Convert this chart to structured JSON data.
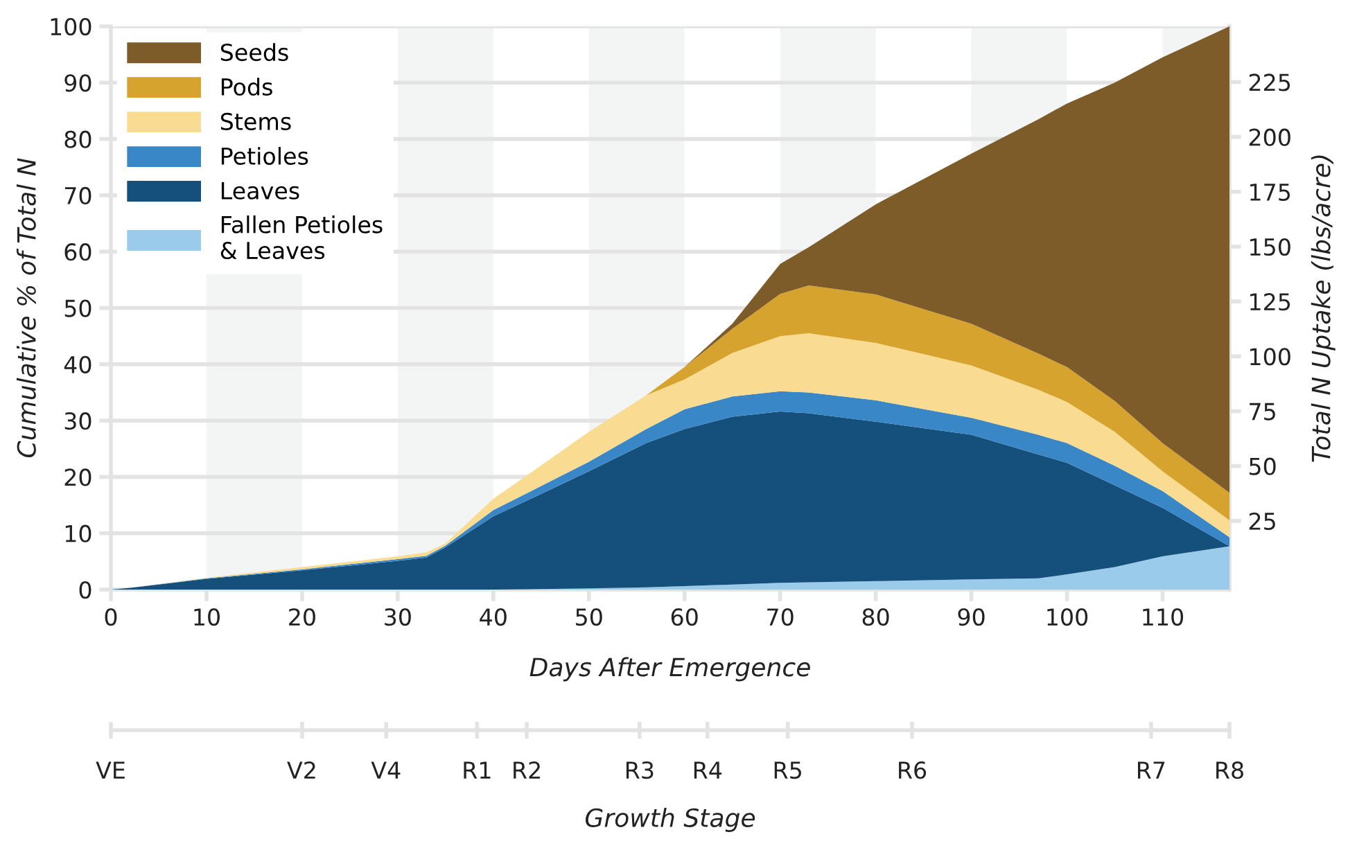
{
  "chart_data": {
    "type": "area",
    "stacked": true,
    "xlabel": "Days After Emergence",
    "ylabel": "Cumulative % of Total N",
    "y2label": "Total N Uptake (lbs/acre)",
    "x": [
      0,
      2,
      10,
      20,
      30,
      33,
      35,
      40,
      50,
      56,
      60,
      65,
      70,
      73,
      80,
      90,
      97,
      100,
      105,
      110,
      117
    ],
    "series": [
      {
        "name": "Fallen Petioles & Leaves",
        "color": "#9bcbea",
        "values": [
          0,
          0,
          0,
          0,
          0,
          0,
          0,
          0,
          0.2,
          0.4,
          0.6,
          0.9,
          1.2,
          1.3,
          1.5,
          1.8,
          2.0,
          2.7,
          4.0,
          5.9,
          7.7
        ]
      },
      {
        "name": "Leaves",
        "color": "#154f7b",
        "values": [
          0,
          0.3,
          1.9,
          3.4,
          5.1,
          5.7,
          7.5,
          13,
          20.8,
          25.6,
          27.9,
          29.8,
          30.4,
          30.0,
          28.3,
          25.7,
          22.0,
          19.8,
          14.5,
          8.6,
          0
        ]
      },
      {
        "name": "Petioles",
        "color": "#3a87c8",
        "values": [
          0,
          0,
          0.1,
          0.2,
          0.3,
          0.3,
          0.3,
          1.1,
          1.7,
          2.5,
          3.5,
          3.6,
          3.6,
          3.7,
          3.8,
          3.0,
          3.5,
          3.5,
          3.5,
          3.0,
          1.6
        ]
      },
      {
        "name": "Stems",
        "color": "#f9dc91",
        "values": [
          0,
          0,
          0.1,
          0.4,
          0.5,
          0.6,
          0.4,
          2.0,
          5.3,
          6.0,
          5.3,
          7.7,
          9.8,
          10.5,
          10.2,
          9.3,
          8.0,
          7.3,
          6.0,
          3.5,
          3.0
        ]
      },
      {
        "name": "Pods",
        "color": "#d6a42e",
        "values": [
          0,
          0,
          0,
          0,
          0,
          0,
          0,
          0,
          0,
          0,
          2.2,
          4.3,
          7.5,
          8.5,
          8.6,
          7.4,
          6.4,
          6.2,
          5.5,
          5.0,
          4.9
        ]
      },
      {
        "name": "Seeds",
        "color": "#7d5c29",
        "values": [
          0,
          0,
          0,
          0,
          0,
          0,
          0,
          0,
          0,
          0,
          0,
          0.9,
          5.3,
          6.8,
          16.0,
          30.2,
          41.6,
          46.8,
          56.5,
          68.5,
          82.8
        ]
      }
    ],
    "xlim": [
      0,
      117
    ],
    "xticks": [
      0,
      10,
      20,
      30,
      40,
      50,
      60,
      70,
      80,
      90,
      100,
      110
    ],
    "ylim": [
      0,
      100
    ],
    "yticks": [
      0,
      10,
      20,
      30,
      40,
      50,
      60,
      70,
      80,
      90,
      100
    ],
    "y2lim": [
      -6.3,
      250.4
    ],
    "y2ticks": [
      25,
      50,
      75,
      100,
      125,
      150,
      175,
      200,
      225
    ],
    "x2label": "Growth Stage",
    "ref_lines": [
      {
        "axis": "x",
        "value": 0,
        "label": "VE"
      },
      {
        "axis": "x",
        "value": 20,
        "label": "V2"
      },
      {
        "axis": "x",
        "value": 28.8,
        "label": "V4"
      },
      {
        "axis": "x",
        "value": 38.3,
        "label": "R1"
      },
      {
        "axis": "x",
        "value": 43.5,
        "label": "R2"
      },
      {
        "axis": "x",
        "value": 55.3,
        "label": "R3"
      },
      {
        "axis": "x",
        "value": 62.4,
        "label": "R4"
      },
      {
        "axis": "x",
        "value": 70.8,
        "label": "R5"
      },
      {
        "axis": "x",
        "value": 83.8,
        "label": "R6"
      },
      {
        "axis": "x",
        "value": 108.8,
        "label": "R7"
      },
      {
        "axis": "x",
        "value": 117,
        "label": "R8"
      }
    ],
    "bands": [
      {
        "axis": "x",
        "from": 10,
        "to": 20,
        "color": "#f3f5f4"
      },
      {
        "axis": "x",
        "from": 30,
        "to": 40,
        "color": "#f3f5f4"
      },
      {
        "axis": "x",
        "from": 50,
        "to": 60,
        "color": "#f3f5f4"
      },
      {
        "axis": "x",
        "from": 70,
        "to": 80,
        "color": "#f3f5f4"
      },
      {
        "axis": "x",
        "from": 90,
        "to": 100,
        "color": "#f3f5f4"
      },
      {
        "axis": "x",
        "from": 110,
        "to": 117,
        "color": "#f3f5f4"
      }
    ],
    "grid": "y",
    "legend": "top left"
  }
}
